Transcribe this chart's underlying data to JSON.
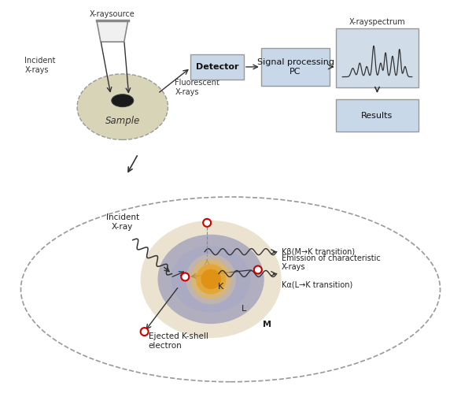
{
  "bg_color": "#ffffff",
  "fig_width": 5.86,
  "fig_height": 5.04,
  "dpi": 100,
  "top": {
    "xray_source_label": "X-raysource",
    "incident_label": "Incident\nX-rays",
    "sample_label": "Sample",
    "fluorescent_label": "Fluorescent\nX-rays",
    "detector_label": "Detector",
    "signal_label": "Signal processing\nPC",
    "spectrum_label": "X-rayspectrum",
    "results_label": "Results",
    "box_color": "#c8d8e8",
    "box_edge": "#999999",
    "spec_box_color": "#d0dce8"
  },
  "bot": {
    "M_shell_color": "#e8e0c8",
    "L_shell_color": "#b0b8cc",
    "nucleus_color": "#e8a828",
    "incident_label": "Incident\nX-ray",
    "ejected_label": "Ejected K-shell\nelectron",
    "emission_label": "Emission of characteristic\nX-rays",
    "Kb_label": "Kβ(M→K transition)",
    "Ka_label": "Kα(L→K transition)",
    "K_label": "K",
    "L_label": "L",
    "M_label": "M",
    "electron_color": "#cc0000",
    "text_color": "#222222"
  }
}
